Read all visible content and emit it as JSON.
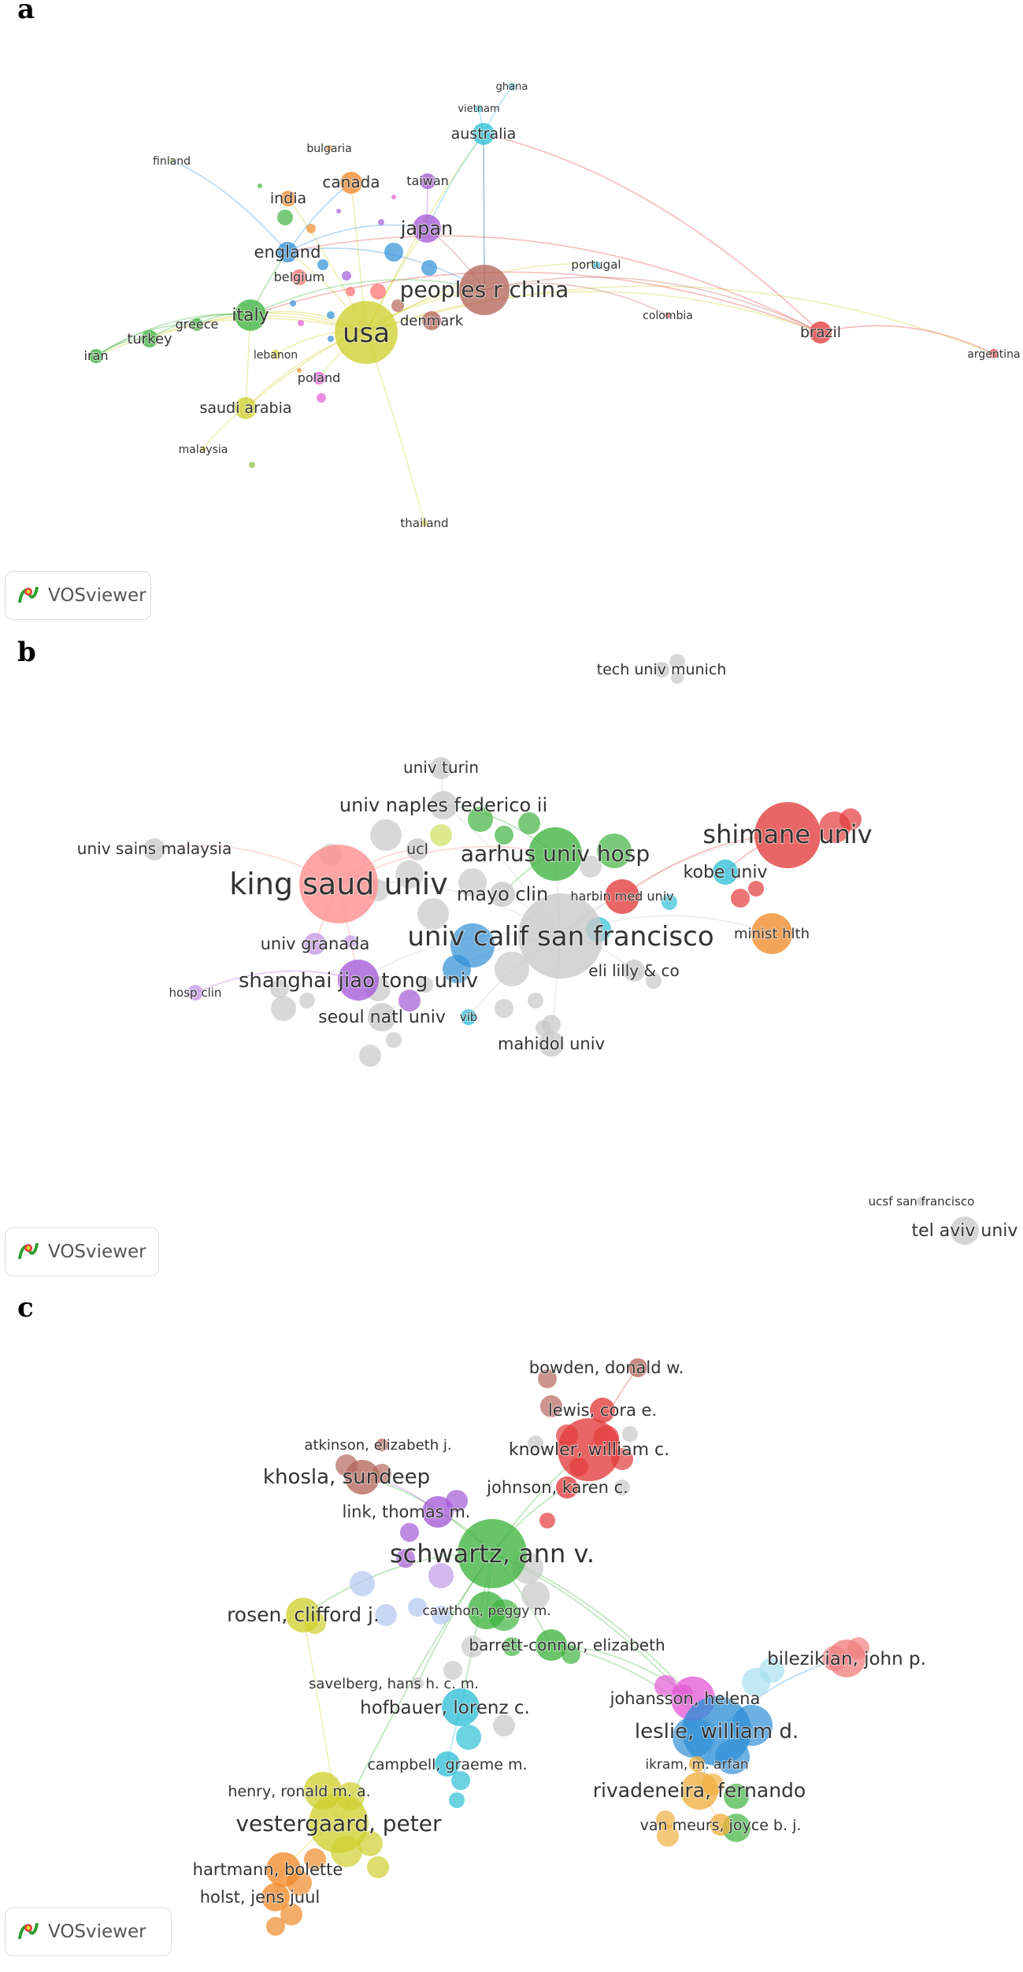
{
  "tool_name": "VOSviewer",
  "panels": [
    {
      "letter": "a",
      "nodes": [
        {
          "label": "ghana",
          "color": "#2fbfd6"
        },
        {
          "label": "vietnam",
          "color": "#2fbfd6"
        },
        {
          "label": "australia",
          "color": "#2fbfd6"
        },
        {
          "label": "bulgaria",
          "color": "#f08a2a"
        },
        {
          "label": "finland",
          "color": "#8fbf3f"
        },
        {
          "label": "canada",
          "color": "#f08a2a"
        },
        {
          "label": "taiwan",
          "color": "#a35ad6"
        },
        {
          "label": "india",
          "color": "#f08a2a"
        },
        {
          "label": "japan",
          "color": "#a35ad6"
        },
        {
          "label": "england",
          "color": "#2f8fd6"
        },
        {
          "label": "belgium",
          "color": "#ff6b6b"
        },
        {
          "label": "portugal",
          "color": "#2fbfd6"
        },
        {
          "label": "peoples r china",
          "color": "#b5675b"
        },
        {
          "label": "italy",
          "color": "#3fb33f"
        },
        {
          "label": "denmark",
          "color": "#b5675b"
        },
        {
          "label": "greece",
          "color": "#3fb33f"
        },
        {
          "label": "usa",
          "color": "#cfcf2f"
        },
        {
          "label": "colombia",
          "color": "#e33b3b"
        },
        {
          "label": "brazil",
          "color": "#e33b3b"
        },
        {
          "label": "turkey",
          "color": "#3fb33f"
        },
        {
          "label": "iran",
          "color": "#3fb33f"
        },
        {
          "label": "lebanon",
          "color": "#cfcf2f"
        },
        {
          "label": "argentina",
          "color": "#e33b3b"
        },
        {
          "label": "poland",
          "color": "#e35bd6"
        },
        {
          "label": "saudi arabia",
          "color": "#cfcf2f"
        },
        {
          "label": "malaysia",
          "color": "#cfcf2f"
        },
        {
          "label": "thailand",
          "color": "#cfcf2f"
        }
      ]
    },
    {
      "letter": "b",
      "nodes": [
        {
          "label": "tech univ munich",
          "color": "#c8c8c8"
        },
        {
          "label": "univ turin",
          "color": "#c8c8c8"
        },
        {
          "label": "univ naples federico ii",
          "color": "#c8c8c8"
        },
        {
          "label": "shimane univ",
          "color": "#e33b3b"
        },
        {
          "label": "univ sains malaysia",
          "color": "#c8c8c8"
        },
        {
          "label": "ucl",
          "color": "#c8c8c8"
        },
        {
          "label": "aarhus univ hosp",
          "color": "#3fb33f"
        },
        {
          "label": "kobe univ",
          "color": "#2fbfd6"
        },
        {
          "label": "king saud univ",
          "color": "#ff8c8c"
        },
        {
          "label": "mayo clin",
          "color": "#c8c8c8"
        },
        {
          "label": "harbin med univ",
          "color": "#e33b3b"
        },
        {
          "label": "minist hlth",
          "color": "#f08a2a"
        },
        {
          "label": "univ granada",
          "color": "#c39ae6"
        },
        {
          "label": "univ calif san francisco",
          "color": "#c8c8c8"
        },
        {
          "label": "shanghai jiao tong univ",
          "color": "#a35ad6"
        },
        {
          "label": "eli lilly & co",
          "color": "#c8c8c8"
        },
        {
          "label": "hosp clin",
          "color": "#c39ae6"
        },
        {
          "label": "seoul natl univ",
          "color": "#c8c8c8"
        },
        {
          "label": "vib",
          "color": "#2fbfd6"
        },
        {
          "label": "mahidol univ",
          "color": "#c8c8c8"
        },
        {
          "label": "ucsf san francisco",
          "color": "#c8c8c8"
        },
        {
          "label": "tel aviv univ",
          "color": "#c8c8c8"
        }
      ]
    },
    {
      "letter": "c",
      "nodes": [
        {
          "label": "bowden, donald w.",
          "color": "#b5675b"
        },
        {
          "label": "lewis, cora e.",
          "color": "#e33b3b"
        },
        {
          "label": "atkinson, elizabeth j.",
          "color": "#b5675b"
        },
        {
          "label": "knowler, william c.",
          "color": "#e33b3b"
        },
        {
          "label": "khosla, sundeep",
          "color": "#b5675b"
        },
        {
          "label": "johnson, karen c.",
          "color": "#e33b3b"
        },
        {
          "label": "link, thomas m.",
          "color": "#a35ad6"
        },
        {
          "label": "schwartz, ann v.",
          "color": "#3fb33f"
        },
        {
          "label": "rosen, clifford j.",
          "color": "#cfcf2f"
        },
        {
          "label": "cawthon, peggy m.",
          "color": "#3fb33f"
        },
        {
          "label": "barrett-connor, elizabeth",
          "color": "#3fb33f"
        },
        {
          "label": "bilezikian, john p.",
          "color": "#f08080"
        },
        {
          "label": "savelberg, hans h. c. m.",
          "color": "#c8c8c8"
        },
        {
          "label": "johansson, helena",
          "color": "#e35bd6"
        },
        {
          "label": "hofbauer, lorenz c.",
          "color": "#2fbfd6"
        },
        {
          "label": "leslie, william d.",
          "color": "#2f8fd6"
        },
        {
          "label": "campbell, graeme m.",
          "color": "#2fbfd6"
        },
        {
          "label": "ikram, m. arfan",
          "color": "#f0b040"
        },
        {
          "label": "henry, ronald m. a.",
          "color": "#cfcf2f"
        },
        {
          "label": "rivadeneira, fernando",
          "color": "#f0b040"
        },
        {
          "label": "vestergaard, peter",
          "color": "#cfcf2f"
        },
        {
          "label": "van meurs, joyce b. j.",
          "color": "#f0b040"
        },
        {
          "label": "hartmann, bolette",
          "color": "#f08a2a"
        },
        {
          "label": "holst, jens juul",
          "color": "#f08a2a"
        }
      ]
    }
  ]
}
